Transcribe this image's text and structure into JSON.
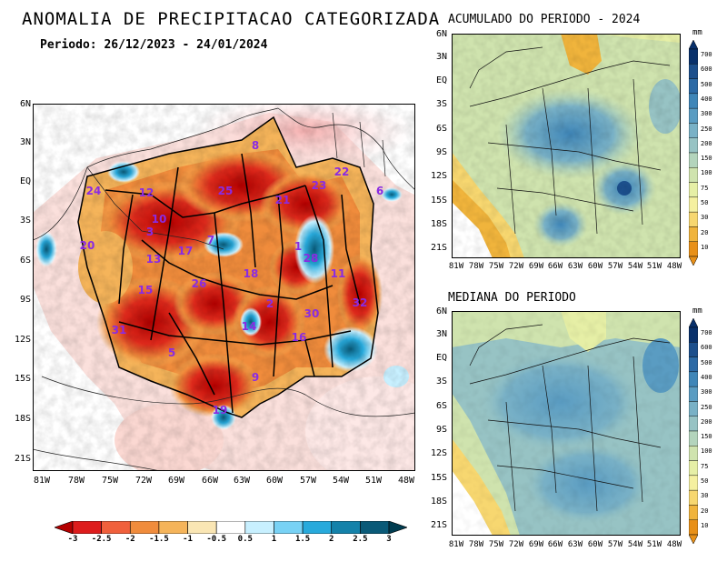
{
  "title": "ANOMALIA DE PRECIPITACAO CATEGORIZADA",
  "subtitle": "Periodo: 26/12/2023 - 24/01/2024",
  "main_map": {
    "lat_labels": [
      "6N",
      "3N",
      "EQ",
      "3S",
      "6S",
      "9S",
      "12S",
      "15S",
      "18S",
      "21S"
    ],
    "lon_labels": [
      "81W",
      "78W",
      "75W",
      "72W",
      "69W",
      "66W",
      "63W",
      "60W",
      "57W",
      "54W",
      "51W",
      "48W"
    ],
    "basins": [
      {
        "id": "8"
      },
      {
        "id": "22"
      },
      {
        "id": "24"
      },
      {
        "id": "12"
      },
      {
        "id": "25"
      },
      {
        "id": "21"
      },
      {
        "id": "23"
      },
      {
        "id": "10"
      },
      {
        "id": "3"
      },
      {
        "id": "20"
      },
      {
        "id": "17"
      },
      {
        "id": "7"
      },
      {
        "id": "13"
      },
      {
        "id": "28"
      },
      {
        "id": "11"
      },
      {
        "id": "26"
      },
      {
        "id": "18"
      },
      {
        "id": "15"
      },
      {
        "id": "32"
      },
      {
        "id": "14"
      },
      {
        "id": "30"
      },
      {
        "id": "31"
      },
      {
        "id": "16"
      },
      {
        "id": "5"
      },
      {
        "id": "9"
      },
      {
        "id": "19"
      },
      {
        "id": "1"
      },
      {
        "id": "2"
      },
      {
        "id": "6"
      }
    ]
  },
  "colorbar_main": {
    "labels": [
      "-3",
      "-2.5",
      "-2",
      "-1.5",
      "-1",
      "-0.5",
      "0.5",
      "1",
      "1.5",
      "2",
      "2.5",
      "3"
    ],
    "colors": [
      "#b40000",
      "#dd1c1c",
      "#f0603c",
      "#f08c3c",
      "#f5b45a",
      "#fae6b4",
      "#ffffff",
      "#c8f0ff",
      "#78d2f5",
      "#28aadc",
      "#1482aa",
      "#0a5a78",
      "#003c50"
    ]
  },
  "top_right": {
    "title": "ACUMULADO DO PERIODO - 2024",
    "lat_labels": [
      "6N",
      "3N",
      "EQ",
      "3S",
      "6S",
      "9S",
      "12S",
      "15S",
      "18S",
      "21S"
    ],
    "lon_labels": [
      "81W",
      "78W",
      "75W",
      "72W",
      "69W",
      "66W",
      "63W",
      "60W",
      "57W",
      "54W",
      "51W",
      "48W"
    ],
    "unit": "mm"
  },
  "bottom_right": {
    "title": "MEDIANA DO PERIODO",
    "lat_labels": [
      "6N",
      "3N",
      "EQ",
      "3S",
      "6S",
      "9S",
      "12S",
      "15S",
      "18S",
      "21S"
    ],
    "lon_labels": [
      "81W",
      "78W",
      "75W",
      "72W",
      "69W",
      "66W",
      "63W",
      "60W",
      "57W",
      "54W",
      "51W",
      "48W"
    ],
    "unit": "mm"
  },
  "colorbar_precip": {
    "labels": [
      "700",
      "600",
      "500",
      "400",
      "300",
      "250",
      "200",
      "150",
      "100",
      "75",
      "50",
      "30",
      "20",
      "10"
    ],
    "colors": [
      "#08306b",
      "#1c4f8c",
      "#2c6aa6",
      "#3f86b8",
      "#5a9cc2",
      "#79b1c6",
      "#97c3c4",
      "#b3d4bc",
      "#cfe3ae",
      "#e6efa6",
      "#f5f0a0",
      "#f7d770",
      "#f0b43c",
      "#e89018"
    ]
  }
}
